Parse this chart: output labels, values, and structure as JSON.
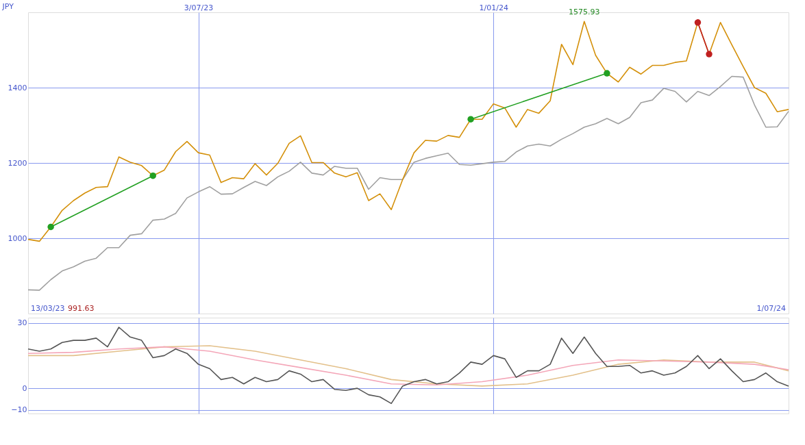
{
  "chart_data": [
    {
      "type": "line",
      "ylabel": "JPY",
      "grid": true,
      "marker": "none",
      "x": [
        "2023-03-20",
        "2023-03-27",
        "2023-04-03",
        "2023-04-10",
        "2023-04-17",
        "2023-04-24",
        "2023-05-01",
        "2023-05-08",
        "2023-05-15",
        "2023-05-22",
        "2023-05-29",
        "2023-06-05",
        "2023-06-12",
        "2023-06-19",
        "2023-06-26",
        "2023-07-03",
        "2023-07-10",
        "2023-07-17",
        "2023-07-24",
        "2023-07-31",
        "2023-08-07",
        "2023-08-14",
        "2023-08-21",
        "2023-08-28",
        "2023-09-04",
        "2023-09-11",
        "2023-09-18",
        "2023-09-25",
        "2023-10-02",
        "2023-10-09",
        "2023-10-16",
        "2023-10-23",
        "2023-10-30",
        "2023-11-06",
        "2023-11-13",
        "2023-11-20",
        "2023-11-27",
        "2023-12-04",
        "2023-12-11",
        "2023-12-18",
        "2023-12-25",
        "2024-01-01",
        "2024-01-08",
        "2024-01-15",
        "2024-01-22",
        "2024-01-29",
        "2024-02-05",
        "2024-02-12",
        "2024-02-19",
        "2024-02-26",
        "2024-03-04",
        "2024-03-11",
        "2024-03-18",
        "2024-03-25",
        "2024-04-01",
        "2024-04-08",
        "2024-04-15",
        "2024-04-22",
        "2024-04-29",
        "2024-05-06",
        "2024-05-13",
        "2024-05-20",
        "2024-05-27",
        "2024-06-03",
        "2024-06-10",
        "2024-06-17",
        "2024-06-24",
        "2024-07-01"
      ],
      "series": [
        {
          "color": "#a0a0a0",
          "values": [
            863,
            862,
            890,
            913,
            924,
            939,
            947,
            975,
            975,
            1008,
            1012,
            1048,
            1051,
            1066,
            1107,
            1123,
            1137,
            1117,
            1118,
            1135,
            1151,
            1140,
            1163,
            1178,
            1202,
            1173,
            1168,
            1191,
            1186,
            1186,
            1130,
            1161,
            1156,
            1156,
            1202,
            1212,
            1219,
            1226,
            1196,
            1194,
            1198,
            1202,
            1204,
            1229,
            1245,
            1250,
            1245,
            1263,
            1278,
            1295,
            1304,
            1318,
            1304,
            1321,
            1360,
            1367,
            1398,
            1390,
            1362,
            1390,
            1379,
            1403,
            1430,
            1428,
            1354,
            1295,
            1296,
            1337
          ]
        },
        {
          "color": "#d4900a",
          "values": [
            997,
            992,
            1030,
            1074,
            1100,
            1120,
            1135,
            1137,
            1216,
            1202,
            1193,
            1166,
            1181,
            1230,
            1257,
            1227,
            1221,
            1148,
            1161,
            1158,
            1198,
            1168,
            1199,
            1252,
            1272,
            1201,
            1201,
            1173,
            1163,
            1174,
            1100,
            1118,
            1076,
            1156,
            1227,
            1260,
            1258,
            1273,
            1268,
            1316,
            1316,
            1357,
            1346,
            1295,
            1342,
            1332,
            1365,
            1515,
            1461,
            1576,
            1486,
            1438,
            1415,
            1454,
            1436,
            1459,
            1459,
            1467,
            1471,
            1573,
            1489,
            1573,
            1514,
            1456,
            1400,
            1385,
            1336,
            1342
          ]
        },
        {
          "color": "#22a022",
          "marker": "circle",
          "x": [
            "2023-04-03",
            "2023-06-05"
          ],
          "values": [
            1030,
            1166
          ]
        },
        {
          "color": "#22a022",
          "marker": "circle",
          "x": [
            "2023-12-18",
            "2024-03-11"
          ],
          "values": [
            1316,
            1438
          ]
        },
        {
          "color": "#c02020",
          "marker": "circle",
          "x": [
            "2024-05-06",
            "2024-05-13"
          ],
          "values": [
            1573,
            1489
          ]
        }
      ],
      "xlim": [
        "2023-03-20",
        "2024-07-01"
      ],
      "xticks": [
        {
          "value": "2023-07-03",
          "label": "3/07/23"
        },
        {
          "value": "2024-01-01",
          "label": "1/01/24"
        }
      ],
      "ylim": [
        800,
        1600
      ],
      "yticks": [
        1000,
        1200,
        1400
      ],
      "annotations": [
        "13/03/23",
        "991.63",
        "1/07/24",
        {
          "text": "1575.93",
          "x": "2024-02-26",
          "y": 1575.93
        }
      ]
    },
    {
      "type": "line",
      "grid": true,
      "marker": "none",
      "tick_labels": "y",
      "x": [
        "2023-03-20",
        "2023-03-27",
        "2023-04-03",
        "2023-04-10",
        "2023-04-17",
        "2023-04-24",
        "2023-05-01",
        "2023-05-08",
        "2023-05-15",
        "2023-05-22",
        "2023-05-29",
        "2023-06-05",
        "2023-06-12",
        "2023-06-19",
        "2023-06-26",
        "2023-07-03",
        "2023-07-10",
        "2023-07-17",
        "2023-07-24",
        "2023-07-31",
        "2023-08-07",
        "2023-08-14",
        "2023-08-21",
        "2023-08-28",
        "2023-09-04",
        "2023-09-11",
        "2023-09-18",
        "2023-09-25",
        "2023-10-02",
        "2023-10-09",
        "2023-10-16",
        "2023-10-23",
        "2023-10-30",
        "2023-11-06",
        "2023-11-13",
        "2023-11-20",
        "2023-11-27",
        "2023-12-04",
        "2023-12-11",
        "2023-12-18",
        "2023-12-25",
        "2024-01-01",
        "2024-01-08",
        "2024-01-15",
        "2024-01-22",
        "2024-01-29",
        "2024-02-05",
        "2024-02-12",
        "2024-02-19",
        "2024-02-26",
        "2024-03-04",
        "2024-03-11",
        "2024-03-18",
        "2024-03-25",
        "2024-04-01",
        "2024-04-08",
        "2024-04-15",
        "2024-04-22",
        "2024-04-29",
        "2024-05-06",
        "2024-05-13",
        "2024-05-20",
        "2024-05-27",
        "2024-06-03",
        "2024-06-10",
        "2024-06-17",
        "2024-06-24",
        "2024-07-01"
      ],
      "series": [
        {
          "color": "#e3c08a",
          "x": [
            "2023-03-20",
            "2023-04-17",
            "2023-05-15",
            "2023-06-12",
            "2023-07-10",
            "2023-08-07",
            "2023-09-04",
            "2023-10-02",
            "2023-10-30",
            "2023-11-27",
            "2023-12-25",
            "2024-01-22",
            "2024-02-19",
            "2024-03-18",
            "2024-04-15",
            "2024-05-13",
            "2024-06-10",
            "2024-07-01"
          ],
          "values": [
            15,
            15,
            17,
            19,
            19.5,
            17,
            13,
            9,
            4,
            2,
            1,
            2,
            6,
            11,
            13,
            12,
            12,
            8
          ]
        },
        {
          "color": "#f4a6b8",
          "x": [
            "2023-03-20",
            "2023-04-17",
            "2023-05-15",
            "2023-06-12",
            "2023-07-10",
            "2023-08-07",
            "2023-09-04",
            "2023-10-02",
            "2023-10-30",
            "2023-11-27",
            "2023-12-25",
            "2024-01-22",
            "2024-02-19",
            "2024-03-18",
            "2024-04-15",
            "2024-05-13",
            "2024-06-10",
            "2024-07-01"
          ],
          "values": [
            16,
            16.5,
            18,
            19,
            17,
            13,
            9.5,
            6,
            2,
            1.5,
            3,
            6,
            10.5,
            13,
            12.5,
            12,
            11,
            8.5
          ]
        },
        {
          "color": "#555555",
          "values": [
            18,
            17,
            18,
            21,
            22,
            22,
            23,
            19,
            28,
            23.5,
            22,
            14,
            15,
            18,
            16,
            11,
            9,
            4,
            5,
            2,
            5,
            3,
            4,
            8,
            6.5,
            3,
            4,
            -0.5,
            -1,
            0,
            -3,
            -4,
            -7,
            1,
            3,
            4,
            2,
            3,
            7,
            12,
            11,
            15,
            13.5,
            5,
            8,
            8,
            11,
            23,
            16,
            23.5,
            16,
            10,
            10,
            10.5,
            7,
            8,
            6,
            7,
            10,
            15,
            9,
            13.5,
            8,
            3,
            4,
            7,
            3,
            1
          ]
        }
      ],
      "xlim": [
        "2023-03-20",
        "2024-07-01"
      ],
      "xticks": [
        {
          "value": "2023-07-03",
          "label": null
        },
        {
          "value": "2024-01-01",
          "label": null
        }
      ],
      "ylim": [
        -11.6,
        32.4
      ],
      "yticks": [
        -10,
        0,
        30
      ]
    }
  ]
}
